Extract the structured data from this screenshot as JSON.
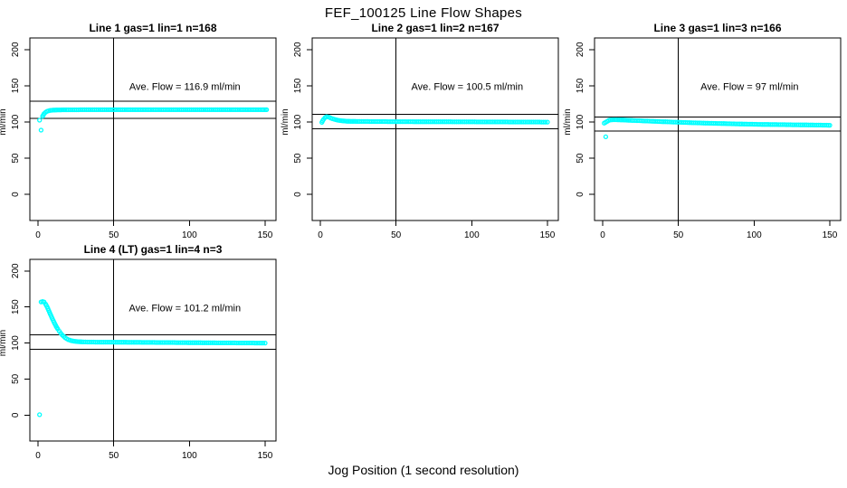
{
  "figure": {
    "title": "FEF_100125  Line Flow Shapes",
    "xlabel": "Jog Position (1 second resolution)"
  },
  "colors": {
    "point": "#00ffff",
    "axis": "#000000",
    "background": "#ffffff",
    "text": "#000000"
  },
  "chart_data": [
    {
      "type": "scatter",
      "title": "Line 1 gas=1 lin=1 n=168",
      "annotation": "Ave. Flow =  116.9  ml/min",
      "ave_flow": 116.9,
      "n": 168,
      "ylabel": "ml/min",
      "x_ticks": [
        0,
        50,
        100,
        150
      ],
      "y_ticks": [
        0,
        50,
        100,
        150,
        200
      ],
      "xlim": [
        0,
        150
      ],
      "ylim": [
        0,
        200
      ],
      "vline_x": 50,
      "ref_lines": [
        128.6,
        105.2
      ],
      "marker": "open-circle",
      "points": [
        [
          3,
          108
        ],
        [
          4,
          111.5
        ],
        [
          5,
          113.5
        ],
        [
          6,
          114.8
        ],
        [
          7,
          115.5
        ],
        [
          8,
          115.9
        ],
        [
          9,
          116.2
        ],
        [
          10,
          116.4
        ],
        [
          12,
          116.6
        ],
        [
          14,
          116.7
        ],
        [
          17,
          116.8
        ],
        [
          20,
          116.8
        ],
        [
          24,
          116.8
        ],
        [
          28,
          116.9
        ],
        [
          32,
          116.9
        ],
        [
          36,
          116.9
        ],
        [
          40,
          116.9
        ],
        [
          44,
          117
        ],
        [
          48,
          117
        ],
        [
          52,
          117
        ],
        [
          56,
          117
        ],
        [
          60,
          117
        ],
        [
          64,
          117
        ],
        [
          68,
          117
        ],
        [
          72,
          117
        ],
        [
          76,
          117
        ],
        [
          80,
          117
        ],
        [
          84,
          117
        ],
        [
          88,
          117
        ],
        [
          92,
          117
        ],
        [
          96,
          117
        ],
        [
          100,
          117
        ],
        [
          104,
          117
        ],
        [
          108,
          117
        ],
        [
          112,
          117
        ],
        [
          116,
          117
        ],
        [
          120,
          117
        ],
        [
          124,
          117
        ],
        [
          128,
          117
        ],
        [
          132,
          117
        ],
        [
          136,
          117
        ],
        [
          140,
          117
        ],
        [
          144,
          117
        ],
        [
          148,
          117
        ],
        [
          151,
          117
        ]
      ],
      "outliers": [
        [
          1,
          102.5
        ],
        [
          2,
          88.8
        ]
      ]
    },
    {
      "type": "scatter",
      "title": "Line 2 gas=1 lin=2 n=167",
      "annotation": "Ave. Flow =  100.5  ml/min",
      "ave_flow": 100.5,
      "n": 167,
      "ylabel": "ml/min",
      "x_ticks": [
        0,
        50,
        100,
        150
      ],
      "y_ticks": [
        0,
        50,
        100,
        150,
        200
      ],
      "xlim": [
        0,
        150
      ],
      "ylim": [
        0,
        200
      ],
      "vline_x": 50,
      "ref_lines": [
        110.6,
        90.5
      ],
      "marker": "open-circle",
      "points": [
        [
          1,
          99.5
        ],
        [
          2,
          103.5
        ],
        [
          3,
          106
        ],
        [
          4,
          107.3
        ],
        [
          5,
          107
        ],
        [
          6,
          106.3
        ],
        [
          7,
          105.4
        ],
        [
          8,
          104.5
        ],
        [
          9,
          103.8
        ],
        [
          10,
          103.2
        ],
        [
          11,
          102.7
        ],
        [
          12,
          102.3
        ],
        [
          13,
          102
        ],
        [
          14,
          101.7
        ],
        [
          15,
          101.5
        ],
        [
          16,
          101.3
        ],
        [
          18,
          101
        ],
        [
          20,
          100.9
        ],
        [
          23,
          100.8
        ],
        [
          26,
          100.7
        ],
        [
          30,
          100.7
        ],
        [
          34,
          100.6
        ],
        [
          38,
          100.6
        ],
        [
          42,
          100.6
        ],
        [
          46,
          100.5
        ],
        [
          50,
          100.5
        ],
        [
          54,
          100.5
        ],
        [
          58,
          100.5
        ],
        [
          62,
          100.4
        ],
        [
          66,
          100.4
        ],
        [
          70,
          100.4
        ],
        [
          74,
          100.3
        ],
        [
          78,
          100.3
        ],
        [
          82,
          100.3
        ],
        [
          86,
          100.3
        ],
        [
          90,
          100.2
        ],
        [
          94,
          100.2
        ],
        [
          98,
          100.2
        ],
        [
          102,
          100.2
        ],
        [
          106,
          100.1
        ],
        [
          110,
          100.1
        ],
        [
          114,
          100.1
        ],
        [
          118,
          100.1
        ],
        [
          122,
          100.1
        ],
        [
          126,
          100
        ],
        [
          130,
          100
        ],
        [
          134,
          100
        ],
        [
          138,
          100
        ],
        [
          142,
          100
        ],
        [
          146,
          99.9
        ],
        [
          150,
          99.9
        ]
      ],
      "outliers": []
    },
    {
      "type": "scatter",
      "title": "Line 3 gas=1 lin=3 n=166",
      "annotation": "Ave. Flow =  97  ml/min",
      "ave_flow": 97,
      "n": 166,
      "ylabel": "ml/min",
      "x_ticks": [
        0,
        50,
        100,
        150
      ],
      "y_ticks": [
        0,
        50,
        100,
        150,
        200
      ],
      "xlim": [
        0,
        150
      ],
      "ylim": [
        0,
        200
      ],
      "vline_x": 50,
      "ref_lines": [
        106.7,
        87.3
      ],
      "marker": "open-circle",
      "points": [
        [
          1,
          98.5
        ],
        [
          3,
          101
        ],
        [
          4,
          102.2
        ],
        [
          5,
          102.7
        ],
        [
          6,
          103
        ],
        [
          8,
          103.1
        ],
        [
          10,
          103
        ],
        [
          12,
          102.9
        ],
        [
          14,
          102.7
        ],
        [
          16,
          102.5
        ],
        [
          18,
          102.3
        ],
        [
          20,
          102.1
        ],
        [
          24,
          101.8
        ],
        [
          28,
          101.4
        ],
        [
          32,
          101.1
        ],
        [
          36,
          100.7
        ],
        [
          40,
          100.4
        ],
        [
          44,
          100.1
        ],
        [
          48,
          99.8
        ],
        [
          52,
          99.5
        ],
        [
          56,
          99.2
        ],
        [
          60,
          98.9
        ],
        [
          64,
          98.7
        ],
        [
          68,
          98.4
        ],
        [
          72,
          98.2
        ],
        [
          76,
          98
        ],
        [
          80,
          97.8
        ],
        [
          84,
          97.6
        ],
        [
          88,
          97.4
        ],
        [
          92,
          97.2
        ],
        [
          96,
          97
        ],
        [
          100,
          96.9
        ],
        [
          104,
          96.7
        ],
        [
          108,
          96.6
        ],
        [
          112,
          96.5
        ],
        [
          116,
          96.4
        ],
        [
          120,
          96.3
        ],
        [
          124,
          96.2
        ],
        [
          128,
          96.1
        ],
        [
          132,
          96
        ],
        [
          136,
          95.9
        ],
        [
          140,
          95.8
        ],
        [
          144,
          95.7
        ],
        [
          148,
          95.6
        ],
        [
          150,
          95.5
        ]
      ],
      "outliers": [
        [
          2,
          79.5
        ]
      ]
    },
    {
      "type": "scatter",
      "title": "Line 4 (LT) gas=1 lin=4 n=3",
      "annotation": "Ave. Flow =  101.2  ml/min",
      "ave_flow": 101.2,
      "n": 3,
      "ylabel": "ml/min",
      "x_ticks": [
        0,
        50,
        100,
        150
      ],
      "y_ticks": [
        0,
        50,
        100,
        150,
        200
      ],
      "xlim": [
        0,
        150
      ],
      "ylim": [
        0,
        200
      ],
      "vline_x": 50,
      "ref_lines": [
        111.3,
        91.1
      ],
      "marker": "open-circle",
      "points": [
        [
          2,
          157
        ],
        [
          3,
          157.5
        ],
        [
          4,
          157
        ],
        [
          5,
          154
        ],
        [
          6,
          150
        ],
        [
          7,
          145.5
        ],
        [
          8,
          140.5
        ],
        [
          9,
          135.8
        ],
        [
          10,
          131.3
        ],
        [
          11,
          127
        ],
        [
          12,
          123
        ],
        [
          13,
          119.5
        ],
        [
          14,
          116.3
        ],
        [
          15,
          113.5
        ],
        [
          16,
          111
        ],
        [
          17,
          109
        ],
        [
          18,
          107.2
        ],
        [
          19,
          105.8
        ],
        [
          20,
          104.6
        ],
        [
          22,
          103.2
        ],
        [
          24,
          102.4
        ],
        [
          26,
          101.9
        ],
        [
          28,
          101.6
        ],
        [
          30,
          101.4
        ],
        [
          34,
          101.3
        ],
        [
          38,
          101.2
        ],
        [
          42,
          101.2
        ],
        [
          46,
          101.1
        ],
        [
          50,
          101.1
        ],
        [
          54,
          101
        ],
        [
          58,
          101
        ],
        [
          62,
          100.9
        ],
        [
          66,
          100.9
        ],
        [
          70,
          100.8
        ],
        [
          74,
          100.8
        ],
        [
          78,
          100.7
        ],
        [
          82,
          100.7
        ],
        [
          86,
          100.6
        ],
        [
          90,
          100.6
        ],
        [
          94,
          100.5
        ],
        [
          98,
          100.5
        ],
        [
          102,
          100.4
        ],
        [
          106,
          100.4
        ],
        [
          110,
          100.3
        ],
        [
          114,
          100.3
        ],
        [
          118,
          100.2
        ],
        [
          122,
          100.2
        ],
        [
          126,
          100.1
        ],
        [
          130,
          100.1
        ],
        [
          134,
          100
        ],
        [
          138,
          100
        ],
        [
          142,
          100
        ],
        [
          146,
          99.9
        ],
        [
          150,
          99.9
        ]
      ],
      "outliers": [
        [
          1,
          0.5
        ]
      ]
    }
  ]
}
